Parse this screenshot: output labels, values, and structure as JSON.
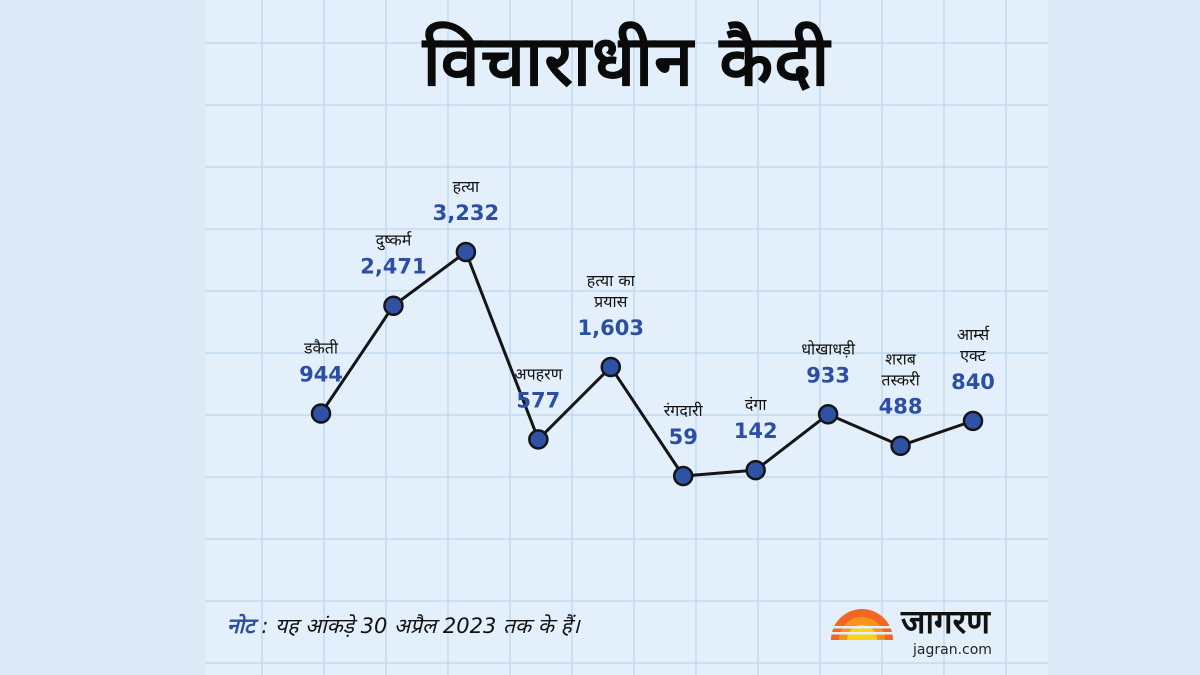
{
  "title": "विचाराधीन कैदी",
  "note": {
    "prefix": "नोट",
    "separator": " : ",
    "text": "यह आंकड़े 30 अप्रैल 2023 तक के हैं।"
  },
  "logo": {
    "name": "जागरण",
    "url": "jagran.com",
    "colors": [
      "#f26522",
      "#f7941d",
      "#fcd116"
    ]
  },
  "colors": {
    "line": "#151515",
    "marker_fill": "#2f52a6",
    "value_text": "#2d4fa3",
    "background": "#e3f0fb",
    "grid": "#c0d6ec"
  },
  "chart_data": {
    "type": "line",
    "title": "विचाराधीन कैदी",
    "categories": [
      [
        "डकैती"
      ],
      [
        "दुष्कर्म"
      ],
      [
        "हत्या"
      ],
      [
        "अपहरण"
      ],
      [
        "हत्या का",
        "प्रयास"
      ],
      [
        "रंगदारी"
      ],
      [
        "दंगा"
      ],
      [
        "धोखाधड़ी"
      ],
      [
        "शराब",
        "तस्करी"
      ],
      [
        "आर्म्स",
        "एक्ट"
      ]
    ],
    "values": [
      944,
      2471,
      3232,
      577,
      1603,
      59,
      142,
      933,
      488,
      840
    ],
    "value_labels": [
      "944",
      "2,471",
      "3,232",
      "577",
      "1,603",
      "59",
      "142",
      "933",
      "488",
      "840"
    ],
    "grid": true,
    "legend": "none"
  }
}
